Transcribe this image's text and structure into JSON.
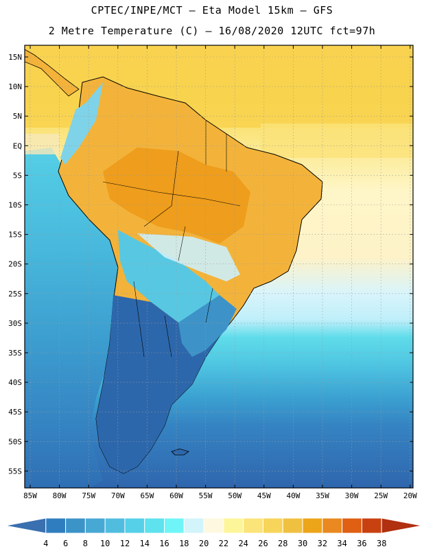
{
  "title": {
    "line1": "CPTEC/INPE/MCT –  Eta Model 15km – GFS",
    "line2": "2 Metre Temperature (C) – 16/08/2020 12UTC fct=97h"
  },
  "map": {
    "lat_labels": [
      "15N",
      "10N",
      "5N",
      "EQ",
      "5S",
      "10S",
      "15S",
      "20S",
      "25S",
      "30S",
      "35S",
      "40S",
      "45S",
      "50S",
      "55S"
    ],
    "lon_labels": [
      "85W",
      "80W",
      "75W",
      "70W",
      "65W",
      "60W",
      "55W",
      "50W",
      "45W",
      "40W",
      "35W",
      "30W",
      "25W",
      "20W"
    ]
  },
  "colorbar": {
    "labels": [
      "4",
      "6",
      "8",
      "10",
      "12",
      "14",
      "16",
      "18",
      "20",
      "22",
      "24",
      "26",
      "28",
      "30",
      "32",
      "34",
      "36",
      "38"
    ],
    "colors": [
      "#3a6fb0",
      "#2f7dbf",
      "#3c93c8",
      "#48a8d4",
      "#50bddf",
      "#55d0e8",
      "#5ee2ee",
      "#6ff5f7",
      "#d2f4fa",
      "#fef8e0",
      "#fdf59a",
      "#fbe47a",
      "#f7d45a",
      "#f0c040",
      "#eca419",
      "#e9891f",
      "#df5f13",
      "#c84110",
      "#b03010"
    ]
  }
}
